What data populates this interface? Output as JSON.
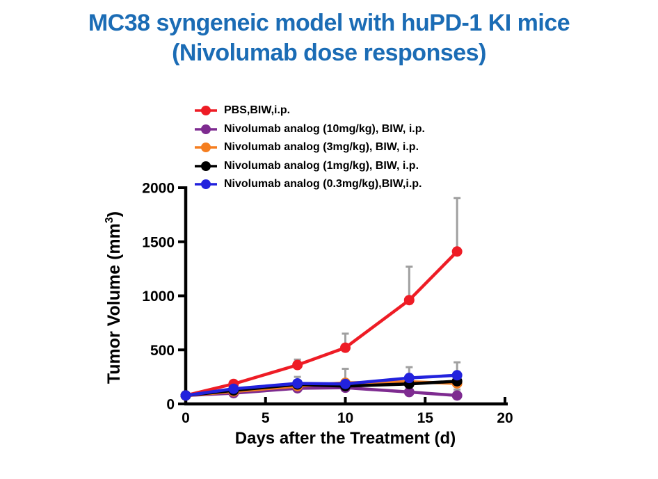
{
  "title": {
    "line1": "MC38 syngeneic model with huPD-1 KI mice",
    "line2": "(Nivolumab dose responses)"
  },
  "colors": {
    "title_text": "#1B6CB5",
    "axis": "#000000",
    "error_bar": "#A0A0A0",
    "background": "#FFFFFF"
  },
  "chart_data": {
    "type": "line",
    "title": "MC38 syngeneic model with huPD-1 KI mice (Nivolumab dose responses)",
    "xlabel": "Days after the Treatment (d)",
    "ylabel": "Tumor Volume (mm³)",
    "ylabel_parts": {
      "main": "Tumor Volume (mm",
      "sup": "3",
      "end": ")"
    },
    "xlim": [
      0,
      20
    ],
    "ylim": [
      0,
      2000
    ],
    "xticks": [
      0,
      5,
      10,
      15,
      20
    ],
    "yticks": [
      0,
      500,
      1000,
      1500,
      2000
    ],
    "grid": false,
    "legend_position": "top-center",
    "x": [
      0,
      3,
      7,
      10,
      14,
      17
    ],
    "series": [
      {
        "key": "pbs",
        "name": "PBS,BIW,i.p.",
        "color": "#EE1C25",
        "values": [
          78,
          185,
          360,
          520,
          960,
          1410
        ],
        "err_plus": [
          0,
          12,
          50,
          130,
          310,
          495
        ]
      },
      {
        "key": "nivolumab-10mgkg",
        "name": "Nivolumab analog (10mg/kg), BIW, i.p.",
        "color": "#7E2B90",
        "values": [
          78,
          100,
          145,
          150,
          110,
          78
        ],
        "err_plus": [
          0,
          0,
          0,
          0,
          0,
          55
        ]
      },
      {
        "key": "nivolumab-3mgkg",
        "name": "Nivolumab analog (3mg/kg), BIW, i.p.",
        "color": "#F57E20",
        "values": [
          78,
          115,
          165,
          195,
          205,
          190
        ],
        "err_plus": [
          0,
          0,
          0,
          0,
          0,
          0
        ]
      },
      {
        "key": "nivolumab-1mgkg",
        "name": "Nivolumab analog (1mg/kg), BIW, i.p.",
        "color": "#000000",
        "values": [
          78,
          125,
          180,
          165,
          185,
          210
        ],
        "err_plus": [
          0,
          0,
          0,
          0,
          0,
          0
        ]
      },
      {
        "key": "nivolumab-0-3mgkg",
        "name": "Nivolumab analog (0.3mg/kg),BIW,i.p.",
        "color": "#2222DD",
        "values": [
          78,
          140,
          190,
          185,
          240,
          265
        ],
        "err_plus": [
          0,
          0,
          60,
          140,
          100,
          120
        ]
      }
    ]
  }
}
